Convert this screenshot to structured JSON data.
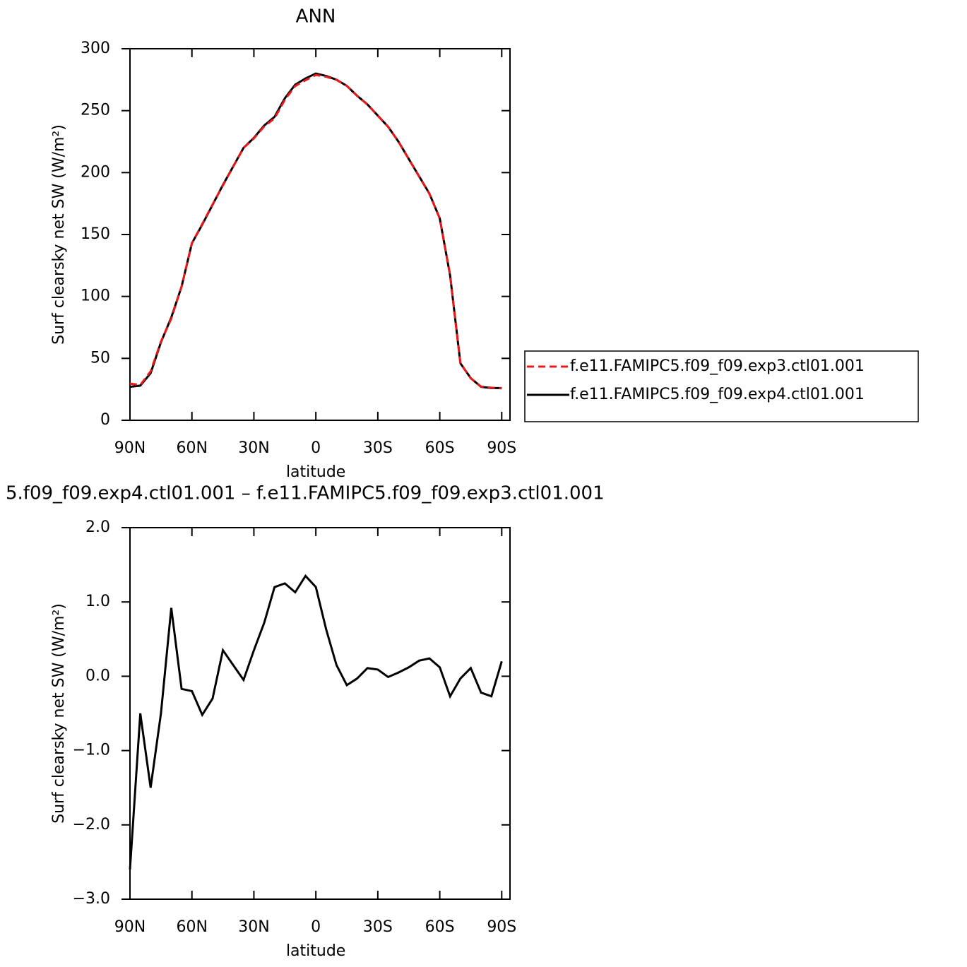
{
  "chart_data": [
    {
      "type": "line",
      "title": "ANN",
      "xlabel": "latitude",
      "ylabel": "Surf clearsky net SW (W/m²)",
      "x": [
        90,
        85,
        80,
        75,
        70,
        65,
        60,
        55,
        50,
        45,
        40,
        35,
        30,
        25,
        20,
        15,
        10,
        5,
        0,
        -5,
        -10,
        -15,
        -20,
        -25,
        -30,
        -35,
        -40,
        -45,
        -50,
        -55,
        -60,
        -65,
        -70,
        -75,
        -80,
        -85,
        -90
      ],
      "series": [
        {
          "name": "f.e11.FAMIPC5.f09_f09.exp3.ctl01.001",
          "color": "#e8191b",
          "style": "dashed",
          "values": [
            29.6,
            28.5,
            39.5,
            63.5,
            82,
            108,
            143,
            158.5,
            174.3,
            189.6,
            204.8,
            220,
            227.6,
            237.3,
            243.8,
            258.8,
            269.9,
            274.6,
            278.8,
            277.4,
            274.8,
            270.1,
            262,
            254.9,
            245.9,
            237,
            225,
            210.9,
            196.8,
            182.8,
            162.9,
            117.3,
            46,
            33.9,
            27.2,
            26.3,
            25.8
          ]
        },
        {
          "name": "f.e11.FAMIPC5.f09_f09.exp4.ctl01.001",
          "color": "#000000",
          "style": "solid",
          "values": [
            27,
            28,
            38,
            63,
            83,
            108,
            143,
            158,
            174,
            190,
            205,
            220,
            228,
            238,
            245,
            260,
            271,
            276,
            280,
            278,
            275,
            270,
            262,
            255,
            246,
            237,
            225,
            211,
            197,
            183,
            163,
            117,
            46,
            34,
            27,
            26,
            26
          ]
        }
      ],
      "xlim": [
        90,
        -94
      ],
      "ylim": [
        0,
        300
      ],
      "xticks": [
        {
          "value": 90,
          "label": "90N"
        },
        {
          "value": 60,
          "label": "60N"
        },
        {
          "value": 30,
          "label": "30N"
        },
        0,
        {
          "value": -30,
          "label": "30S"
        },
        {
          "value": -60,
          "label": "60S"
        },
        {
          "value": -90,
          "label": "90S"
        }
      ],
      "yticks": [
        0,
        50,
        100,
        150,
        200,
        250,
        300
      ],
      "legend": "right"
    },
    {
      "type": "line",
      "title": "5.f09_f09.exp4.ctl01.001 – f.e11.FAMIPC5.f09_f09.exp3.ctl01.001",
      "xlabel": "latitude",
      "ylabel": "Surf clearsky net SW (W/m²)",
      "x": [
        90,
        85,
        80,
        75,
        70,
        65,
        60,
        55,
        50,
        45,
        40,
        35,
        30,
        25,
        20,
        15,
        10,
        5,
        0,
        -5,
        -10,
        -15,
        -20,
        -25,
        -30,
        -35,
        -40,
        -45,
        -50,
        -55,
        -60,
        -65,
        -70,
        -75,
        -80,
        -85,
        -90
      ],
      "values": [
        -2.6,
        -0.5,
        -1.5,
        -0.5,
        0.92,
        -0.17,
        -0.2,
        -0.52,
        -0.3,
        0.35,
        0.15,
        -0.05,
        0.35,
        0.72,
        1.2,
        1.25,
        1.13,
        1.35,
        1.2,
        0.63,
        0.15,
        -0.12,
        -0.03,
        0.11,
        0.09,
        -0.01,
        0.05,
        0.12,
        0.21,
        0.24,
        0.12,
        -0.27,
        -0.03,
        0.11,
        -0.22,
        -0.27,
        0.2
      ],
      "color": "#000000",
      "xlim": [
        90,
        -94
      ],
      "ylim": [
        -3,
        2
      ],
      "xticks": [
        {
          "value": 90,
          "label": "90N"
        },
        {
          "value": 60,
          "label": "60N"
        },
        {
          "value": 30,
          "label": "30N"
        },
        0,
        {
          "value": -30,
          "label": "30S"
        },
        {
          "value": -60,
          "label": "60S"
        },
        {
          "value": -90,
          "label": "90S"
        }
      ],
      "yticks": [
        {
          "value": -3,
          "label": "−3.0"
        },
        {
          "value": -2,
          "label": "−2.0"
        },
        {
          "value": -1,
          "label": "−1.0"
        },
        {
          "value": 0,
          "label": "0.0"
        },
        {
          "value": 1,
          "label": "1.0"
        },
        {
          "value": 2,
          "label": "2.0"
        }
      ]
    }
  ]
}
